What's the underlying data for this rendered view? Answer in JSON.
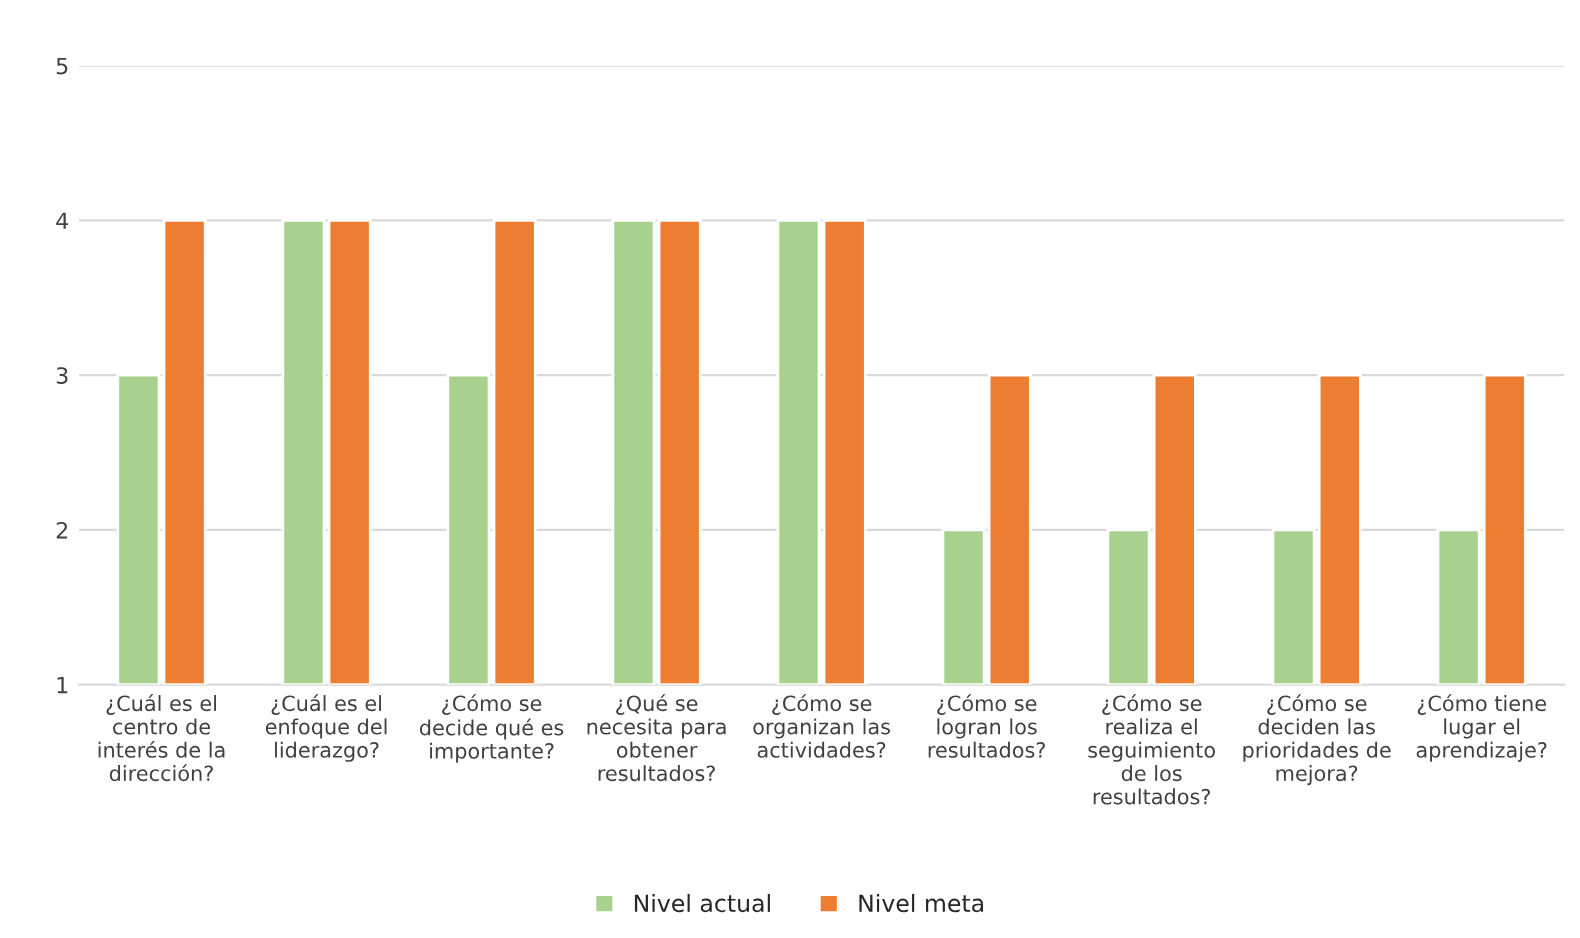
{
  "chart_data": {
    "type": "bar",
    "categories": [
      "¿Cuál es el\ncentro de\ninterés de la\ndirección?",
      "¿Cuál es el\nenfoque del\nliderazgo?",
      "¿Cómo se\ndecide qué es\nimportante?",
      "¿Qué se\nnecesita para\nobtener\nresultados?",
      "¿Cómo se\norganizan las\nactividades?",
      "¿Cómo se\nlogran los\nresultados?",
      "¿Cómo se\nrealiza el\nseguimiento\nde los\nresultados?",
      "¿Cómo se\ndeciden las\nprioridades de\nmejora?",
      "¿Cómo tiene\nlugar el\naprendizaje?"
    ],
    "series": [
      {
        "name": "Nivel actual",
        "color": "#a9d18e",
        "values": [
          3,
          4,
          3,
          4,
          4,
          2,
          2,
          2,
          2
        ]
      },
      {
        "name": "Nivel meta",
        "color": "#ed7d31",
        "values": [
          4,
          4,
          4,
          4,
          4,
          3,
          3,
          3,
          3
        ]
      }
    ],
    "ylim": [
      1,
      5
    ],
    "yticks": [
      1,
      2,
      3,
      4,
      5
    ],
    "grid": "y",
    "legend": "bottom"
  }
}
